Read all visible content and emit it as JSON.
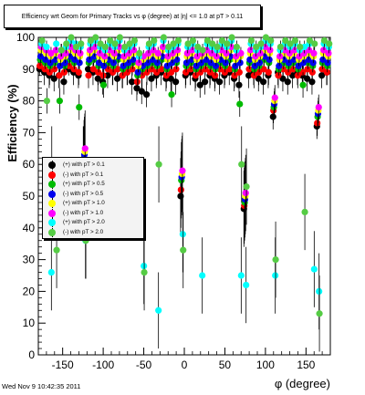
{
  "title": "Efficiency wrt Geom for Primary Tracks vs φ (degree) at |η| <= 1.0 at pT > 0.11",
  "footer": "Wed Nov  9 10:42:35 2011",
  "chart_data": {
    "type": "scatter",
    "title": "Efficiency wrt Geom for Primary Tracks vs φ (degree) at |η| <= 1.0 at pT > 0.11",
    "xlabel": "φ (degree)",
    "ylabel": "Efficiency (%)",
    "xlim": [
      -180,
      180
    ],
    "ylim": [
      0,
      100
    ],
    "x_ticks": [
      -150,
      -100,
      -50,
      0,
      50,
      100,
      150
    ],
    "y_ticks": [
      0,
      10,
      20,
      30,
      40,
      50,
      60,
      70,
      80,
      90,
      100
    ],
    "grid": false,
    "legend_position": "left-middle",
    "x_bins": [
      -177,
      -171,
      -165,
      -159,
      -153,
      -147,
      -141,
      -135,
      -129,
      -123,
      -117,
      -111,
      -105,
      -99,
      -93,
      -87,
      -81,
      -75,
      -69,
      -63,
      -57,
      -51,
      -45,
      -39,
      -33,
      -27,
      -21,
      -15,
      -9,
      -3,
      3,
      9,
      15,
      21,
      27,
      33,
      39,
      45,
      51,
      57,
      63,
      69,
      75,
      81,
      87,
      93,
      99,
      105,
      111,
      117,
      123,
      129,
      135,
      141,
      147,
      153,
      159,
      165,
      171,
      177
    ],
    "series": [
      {
        "name": "(+) with pT > 0.1",
        "color": "#000000",
        "values": [
          90,
          89,
          88,
          87,
          88,
          86,
          90,
          89,
          88,
          60,
          90,
          89,
          87,
          86,
          88,
          89,
          87,
          88,
          89,
          86,
          84,
          83,
          82,
          87,
          88,
          89,
          87,
          87,
          86,
          50,
          88,
          89,
          87,
          85,
          86,
          88,
          87,
          86,
          88,
          89,
          87,
          85,
          46,
          88,
          89,
          87,
          86,
          88,
          75,
          89,
          87,
          86,
          88,
          89,
          88,
          87,
          86,
          72,
          88,
          89
        ]
      },
      {
        "name": "(-) with pT > 0.1",
        "color": "#ff0000",
        "values": [
          91,
          90,
          89,
          90,
          88,
          89,
          91,
          90,
          89,
          60,
          88,
          90,
          89,
          88,
          90,
          89,
          90,
          88,
          89,
          90,
          86,
          88,
          89,
          90,
          89,
          90,
          88,
          89,
          90,
          52,
          89,
          90,
          88,
          89,
          90,
          89,
          88,
          90,
          89,
          90,
          88,
          89,
          47,
          90,
          88,
          89,
          90,
          89,
          77,
          88,
          90,
          89,
          90,
          88,
          89,
          90,
          89,
          73,
          90,
          89
        ]
      },
      {
        "name": "(+) with pT > 0.5",
        "color": "#00bb00",
        "values": [
          93,
          92,
          91,
          92,
          80,
          91,
          93,
          92,
          78,
          62,
          92,
          93,
          91,
          85,
          92,
          91,
          93,
          90,
          91,
          92,
          88,
          90,
          91,
          92,
          91,
          93,
          90,
          82,
          92,
          55,
          91,
          92,
          90,
          91,
          92,
          91,
          90,
          92,
          91,
          93,
          90,
          79,
          48,
          92,
          90,
          91,
          93,
          92,
          78,
          90,
          92,
          91,
          92,
          90,
          85,
          92,
          91,
          75,
          92,
          91
        ]
      },
      {
        "name": "(-) with pT > 0.5",
        "color": "#0000ee",
        "values": [
          94,
          93,
          92,
          93,
          91,
          92,
          94,
          93,
          92,
          63,
          93,
          94,
          92,
          91,
          93,
          92,
          94,
          91,
          92,
          93,
          89,
          91,
          92,
          93,
          92,
          94,
          91,
          92,
          93,
          56,
          92,
          93,
          91,
          92,
          93,
          92,
          91,
          93,
          92,
          94,
          91,
          92,
          49,
          93,
          91,
          92,
          94,
          93,
          79,
          91,
          93,
          92,
          93,
          91,
          92,
          93,
          92,
          76,
          93,
          92
        ]
      },
      {
        "name": "(+) with pT > 1.0",
        "color": "#ffff00",
        "values": [
          96,
          95,
          94,
          95,
          93,
          94,
          96,
          95,
          94,
          64,
          95,
          96,
          94,
          93,
          95,
          94,
          96,
          93,
          94,
          95,
          91,
          93,
          94,
          95,
          94,
          96,
          93,
          94,
          95,
          57,
          94,
          95,
          93,
          94,
          95,
          94,
          93,
          95,
          94,
          96,
          93,
          94,
          50,
          95,
          93,
          94,
          96,
          95,
          80,
          93,
          95,
          94,
          95,
          93,
          94,
          95,
          94,
          77,
          95,
          94
        ]
      },
      {
        "name": "(-) with pT > 1.0",
        "color": "#ff00ff",
        "values": [
          97,
          96,
          95,
          96,
          94,
          95,
          97,
          96,
          95,
          65,
          96,
          97,
          95,
          94,
          96,
          95,
          97,
          94,
          95,
          96,
          92,
          94,
          95,
          96,
          95,
          97,
          94,
          95,
          96,
          58,
          95,
          96,
          94,
          95,
          96,
          95,
          94,
          96,
          95,
          97,
          94,
          95,
          51,
          96,
          94,
          95,
          97,
          96,
          81,
          94,
          96,
          95,
          96,
          94,
          95,
          96,
          95,
          78,
          96,
          95
        ]
      },
      {
        "name": "(+) with pT > 2.0",
        "color": "#00ffff",
        "values": [
          98,
          97,
          26,
          98,
          96,
          97,
          99,
          98,
          97,
          36,
          98,
          99,
          97,
          96,
          98,
          97,
          99,
          96,
          97,
          98,
          94,
          28,
          97,
          98,
          14,
          99,
          96,
          97,
          98,
          38,
          97,
          98,
          96,
          25,
          98,
          97,
          96,
          98,
          97,
          99,
          96,
          25,
          22,
          98,
          96,
          97,
          99,
          98,
          25,
          96,
          98,
          97,
          98,
          96,
          97,
          98,
          27,
          20,
          98,
          97
        ]
      },
      {
        "name": "(-) with pT > 2.0",
        "color": "#55cc44",
        "values": [
          99,
          80,
          60,
          33,
          96,
          98,
          100,
          97,
          98,
          36,
          99,
          100,
          98,
          97,
          99,
          98,
          100,
          97,
          98,
          99,
          95,
          26,
          98,
          99,
          60,
          100,
          97,
          98,
          99,
          33,
          98,
          99,
          97,
          96,
          99,
          98,
          97,
          99,
          98,
          100,
          97,
          60,
          53,
          99,
          97,
          98,
          100,
          99,
          30,
          97,
          99,
          98,
          99,
          97,
          45,
          99,
          98,
          13,
          99,
          98
        ]
      }
    ]
  },
  "legend": {
    "entries": [
      {
        "label": "(+) with pT > 0.1",
        "color": "#000000"
      },
      {
        "label": "(-) with pT > 0.1",
        "color": "#ff0000"
      },
      {
        "label": "(+) with pT > 0.5",
        "color": "#00bb00"
      },
      {
        "label": "(-) with pT > 0.5",
        "color": "#0000ee"
      },
      {
        "label": "(+) with pT > 1.0",
        "color": "#ffff00"
      },
      {
        "label": "(-) with pT > 1.0",
        "color": "#ff00ff"
      },
      {
        "label": "(+) with pT > 2.0",
        "color": "#00ffff"
      },
      {
        "label": "(-) with pT > 2.0",
        "color": "#55cc44"
      }
    ]
  }
}
